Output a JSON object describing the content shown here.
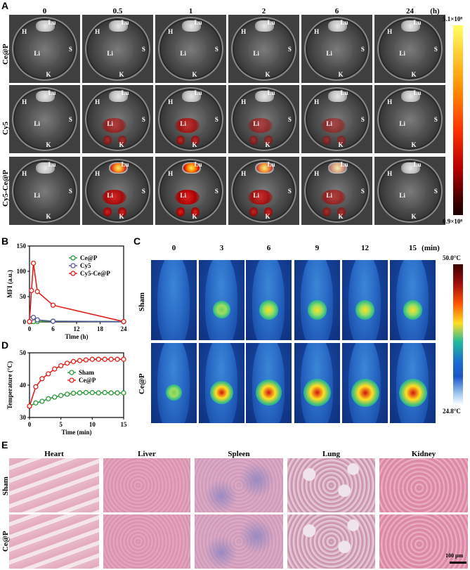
{
  "panel_letters": {
    "A": "A",
    "B": "B",
    "C": "C",
    "D": "D",
    "E": "E"
  },
  "panelA": {
    "time_headers": [
      "0",
      "0.5",
      "1",
      "2",
      "6",
      "24"
    ],
    "time_unit": "(h)",
    "rows": [
      "Ce@P",
      "Cy5",
      "Cy5-Ce@P"
    ],
    "colorbar": {
      "max": "5.1×10⁸",
      "min": "0.9×10⁸",
      "colors": [
        "#ffff66",
        "#ff9900",
        "#ff3300",
        "#aa0000",
        "#220000"
      ]
    }
  },
  "panelC": {
    "time_headers": [
      "0",
      "3",
      "6",
      "9",
      "12",
      "15"
    ],
    "time_unit": "(min)",
    "rows": [
      "Sham",
      "Ce@P"
    ],
    "colorbar": {
      "max": "50.0°C",
      "min": "24.8°C",
      "colors": [
        "#3b0000",
        "#aa1010",
        "#ff6600",
        "#ffee22",
        "#22bb99",
        "#1a55c8",
        "#9fc8ef",
        "#ffffff"
      ]
    }
  },
  "panelE": {
    "organs": [
      "Heart",
      "Liver",
      "Spleen",
      "Lung",
      "Kidney"
    ],
    "rows": [
      "Sham",
      "Ce@P"
    ],
    "scalebar": "100 μm"
  },
  "chart_data": [
    {
      "type": "line",
      "xlabel": "Time (h)",
      "ylabel": "MFI (a.u.)",
      "xlim": [
        0,
        24
      ],
      "ylim": [
        0,
        150
      ],
      "xticks": [
        0,
        6,
        12,
        18,
        24
      ],
      "yticks": [
        0,
        50,
        100,
        150
      ],
      "legend_position": "right",
      "series": [
        {
          "name": "Ce@P",
          "color": "#2a9a3a",
          "x": [
            0,
            0.5,
            1,
            2,
            6,
            24
          ],
          "y": [
            0.5,
            0.8,
            0.6,
            0.7,
            1.5,
            0.4
          ]
        },
        {
          "name": "Cy5",
          "color": "#555599",
          "x": [
            0,
            0.5,
            1,
            2,
            6,
            24
          ],
          "y": [
            0.5,
            6,
            9,
            4,
            1.2,
            0.4
          ]
        },
        {
          "name": "Cy5-Ce@P",
          "color": "#e0201a",
          "x": [
            0,
            0.5,
            1,
            2,
            6,
            24
          ],
          "y": [
            0.5,
            62,
            116,
            60,
            33,
            0.6
          ]
        }
      ]
    },
    {
      "type": "line",
      "xlabel": "Time (min)",
      "ylabel": "Temperature (°C)",
      "xlim": [
        0,
        15
      ],
      "ylim": [
        30,
        50
      ],
      "xticks": [
        0,
        5,
        10,
        15
      ],
      "yticks": [
        30,
        40,
        50
      ],
      "legend_position": "center",
      "series": [
        {
          "name": "Sham",
          "color": "#2a9a3a",
          "x": [
            0,
            1,
            2,
            3,
            4,
            5,
            6,
            7,
            8,
            9,
            10,
            11,
            12,
            13,
            14,
            15
          ],
          "y": [
            33.5,
            34.5,
            35,
            35.8,
            36.3,
            36.8,
            37.2,
            37.5,
            37.6,
            37.7,
            37.7,
            37.6,
            37.7,
            37.6,
            37.6,
            37.6
          ]
        },
        {
          "name": "Ce@P",
          "color": "#e0201a",
          "x": [
            0,
            1,
            2,
            3,
            4,
            5,
            6,
            7,
            8,
            9,
            10,
            11,
            12,
            13,
            14,
            15
          ],
          "y": [
            33.5,
            39.5,
            42,
            43.5,
            45,
            46,
            46.8,
            47.3,
            47.6,
            47.8,
            48,
            48,
            48,
            48,
            48,
            48
          ]
        }
      ]
    }
  ]
}
